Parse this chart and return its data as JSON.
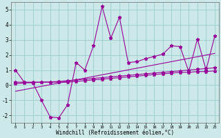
{
  "title": "",
  "xlabel": "Windchill (Refroidissement éolien,°C)",
  "background_color": "#cce8e8",
  "grid_color": "#99cccc",
  "line_color": "#990099",
  "x": [
    0,
    1,
    2,
    3,
    4,
    5,
    6,
    7,
    8,
    9,
    10,
    11,
    12,
    13,
    14,
    15,
    16,
    17,
    18,
    19,
    20,
    21,
    22,
    23
  ],
  "series1": [
    1.0,
    0.2,
    0.15,
    -1.0,
    -2.1,
    -2.15,
    -1.3,
    1.5,
    1.0,
    2.6,
    5.2,
    3.1,
    4.5,
    1.5,
    1.55,
    1.75,
    1.9,
    2.05,
    2.6,
    2.55,
    0.9,
    3.05,
    1.0,
    3.25
  ],
  "series2": [
    0.2,
    0.2,
    0.2,
    0.2,
    0.2,
    0.2,
    0.2,
    0.25,
    0.3,
    0.35,
    0.4,
    0.45,
    0.5,
    0.55,
    0.6,
    0.65,
    0.7,
    0.75,
    0.8,
    0.85,
    0.85,
    0.9,
    0.9,
    0.95
  ],
  "series3_x": [
    0,
    23
  ],
  "series3_y": [
    -0.4,
    2.1
  ],
  "series4": [
    0.1,
    0.15,
    0.18,
    0.2,
    0.22,
    0.25,
    0.3,
    0.35,
    0.4,
    0.45,
    0.5,
    0.55,
    0.6,
    0.65,
    0.7,
    0.75,
    0.8,
    0.85,
    0.9,
    0.95,
    1.0,
    1.05,
    1.1,
    1.15
  ],
  "ylim": [
    -2.5,
    5.5
  ],
  "xlim": [
    -0.5,
    23.5
  ],
  "yticks": [
    -2,
    -1,
    0,
    1,
    2,
    3,
    4,
    5
  ],
  "xticks": [
    0,
    1,
    2,
    3,
    4,
    5,
    6,
    7,
    8,
    9,
    10,
    11,
    12,
    13,
    14,
    15,
    16,
    17,
    18,
    19,
    20,
    21,
    22,
    23
  ],
  "xlabel_fontsize": 5.5,
  "ytick_fontsize": 5.5,
  "xtick_fontsize": 4.0
}
